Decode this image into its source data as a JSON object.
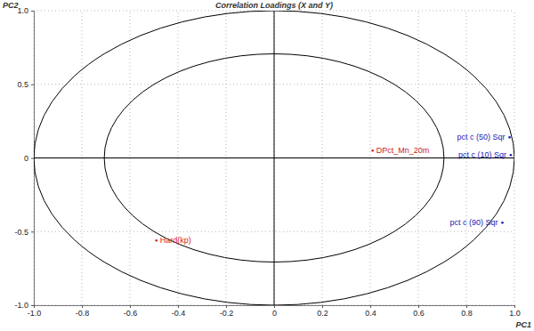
{
  "chart_data": {
    "type": "scatter",
    "title": "Correlation Loadings (X and Y)",
    "x_label": "PC1",
    "y_label": "PC2",
    "xlim": [
      -1,
      1
    ],
    "ylim": [
      -1,
      1
    ],
    "xticks": [
      {
        "value": -1,
        "label": "-1.0"
      },
      -0.8,
      -0.6,
      -0.4,
      -0.2,
      0,
      0.2,
      0.4,
      0.6,
      0.8,
      {
        "value": 1,
        "label": "1.0"
      }
    ],
    "yticks": [
      {
        "value": -1,
        "label": "-1.0"
      },
      -0.5,
      0,
      0.5,
      {
        "value": 1,
        "label": "1.0"
      }
    ],
    "grid": true,
    "ellipses": [
      0.707,
      1
    ],
    "series": [
      {
        "color": "#1a1ab8",
        "marker": "dot",
        "x": [
          0.98,
          0.985,
          0.95
        ],
        "values": [
          0.14,
          0.02,
          -0.44
        ],
        "labels": [
          "pct c (50) Sqr",
          "pct c (10) Sqr",
          "pct c (90) Sqr"
        ]
      },
      {
        "color": "#d42020",
        "marker": "dot",
        "x": [
          0.41,
          -0.49
        ],
        "values": [
          0.05,
          -0.56
        ],
        "labels": [
          "DPct_Mn_20m",
          "Hard(kp)"
        ]
      }
    ]
  }
}
